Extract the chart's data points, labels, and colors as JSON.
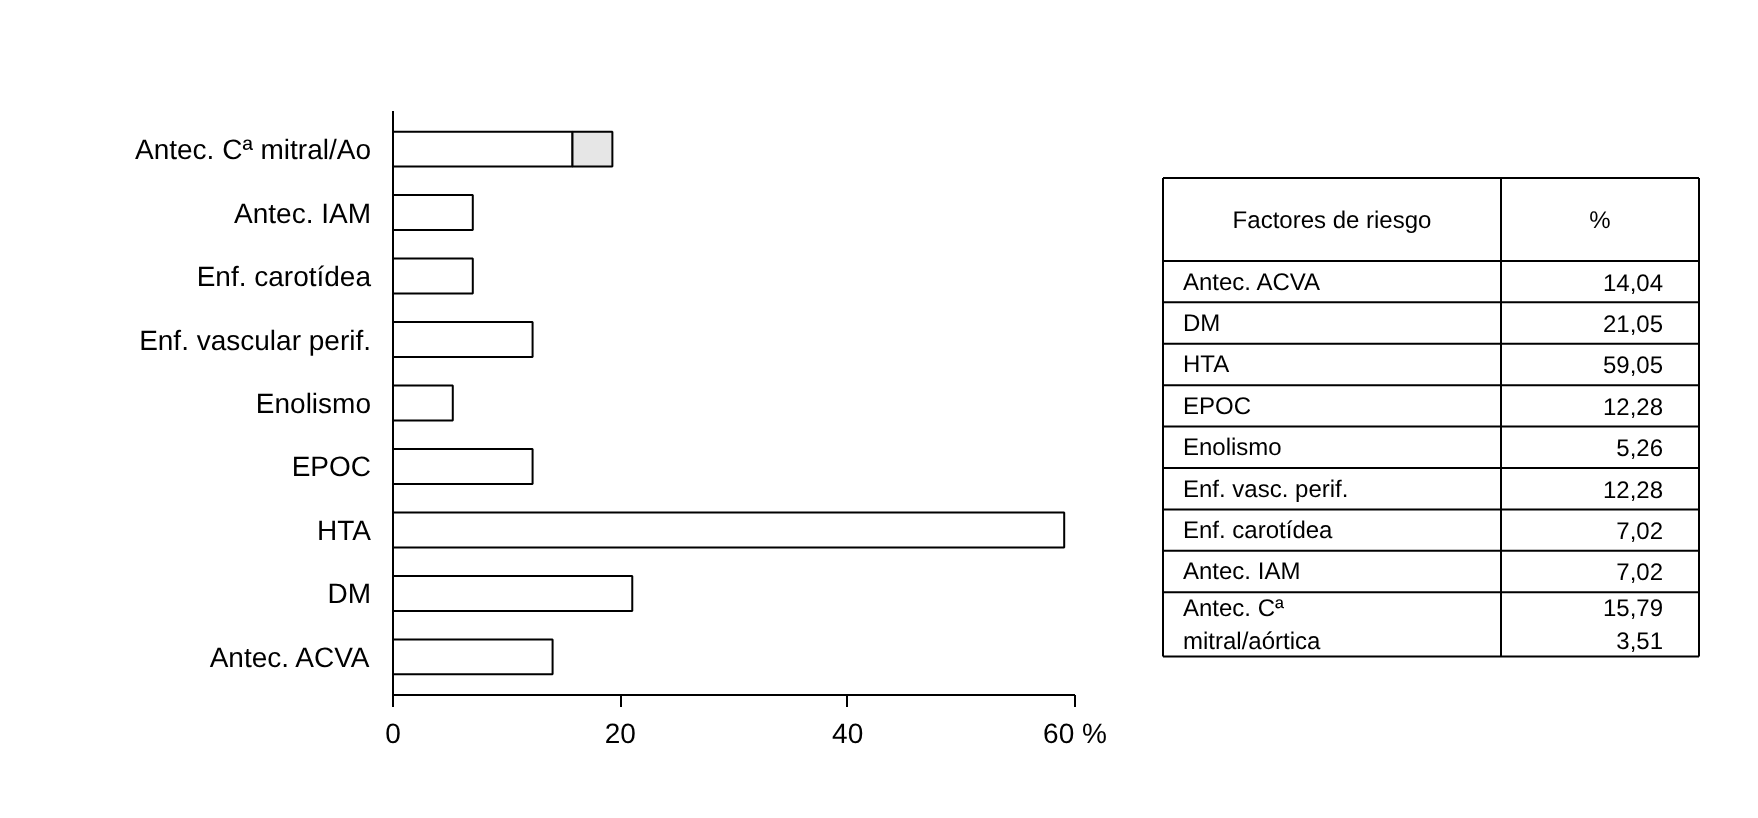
{
  "chart_data": {
    "type": "bar",
    "orientation": "horizontal",
    "stacked": true,
    "categories": [
      "Antec. Cª mitral/Ao",
      "Antec. IAM",
      "Enf. carotídea",
      "Enf. vascular perif.",
      "Enolismo",
      "EPOC",
      "HTA",
      "DM",
      "Antec. ACVA"
    ],
    "series": [
      {
        "color": "#ffffff",
        "values": [
          15.79,
          7.02,
          7.02,
          12.28,
          5.26,
          12.28,
          59.05,
          21.05,
          14.04
        ]
      },
      {
        "color": "#e6e6e6",
        "values": [
          3.51,
          null,
          null,
          null,
          null,
          null,
          null,
          null,
          null
        ]
      }
    ],
    "xlim": [
      0,
      60
    ],
    "xticks": [
      0,
      20,
      40,
      {
        "value": 60,
        "label": "60 %"
      }
    ],
    "grid": false,
    "annotations": [
      "Factores de riesgo",
      "%",
      "Antec. ACVA",
      "14,04",
      "DM",
      "21,05",
      "HTA",
      "59,05",
      "EPOC",
      "12,28",
      "Enolismo",
      "5,26",
      "Enf. vasc. perif.",
      "12,28",
      "Enf. carotídea",
      "7,02",
      "Antec. IAM",
      "7,02",
      "Antec. Cª\nmitral/aórtica",
      "15,79\n3,51"
    ]
  }
}
